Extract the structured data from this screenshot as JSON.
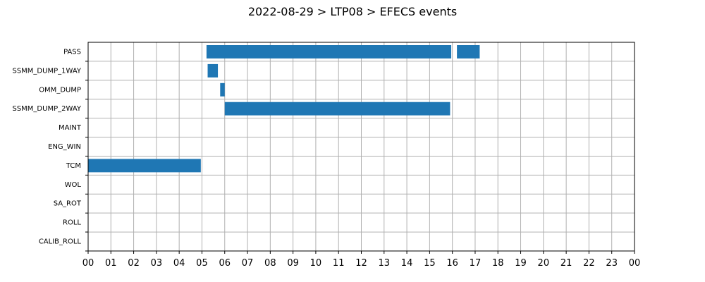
{
  "chart_data": {
    "type": "bar",
    "orientation": "horizontal-timeline",
    "title": "2022-08-29 > LTP08 > EFECS events",
    "x_unit": "hour",
    "xlim": [
      0,
      24
    ],
    "x_tick_labels": [
      "00",
      "01",
      "02",
      "03",
      "04",
      "05",
      "06",
      "07",
      "08",
      "09",
      "10",
      "11",
      "12",
      "13",
      "14",
      "15",
      "16",
      "17",
      "18",
      "19",
      "20",
      "21",
      "22",
      "23",
      "00"
    ],
    "categories": [
      "PASS",
      "SSMM_DUMP_1WAY",
      "OMM_DUMP",
      "SSMM_DUMP_2WAY",
      "MAINT",
      "ENG_WIN",
      "TCM",
      "WOL",
      "SA_ROT",
      "ROLL",
      "CALIB_ROLL"
    ],
    "grid": true,
    "bar_color": "#1f77b4",
    "intervals": [
      {
        "category": "PASS",
        "start": 5.2,
        "end": 15.95
      },
      {
        "category": "PASS",
        "start": 16.2,
        "end": 17.2
      },
      {
        "category": "SSMM_DUMP_1WAY",
        "start": 5.25,
        "end": 5.7
      },
      {
        "category": "OMM_DUMP",
        "start": 5.8,
        "end": 6.0
      },
      {
        "category": "SSMM_DUMP_2WAY",
        "start": 6.0,
        "end": 15.9
      },
      {
        "category": "TCM",
        "start": 0.0,
        "end": 4.95
      }
    ]
  }
}
